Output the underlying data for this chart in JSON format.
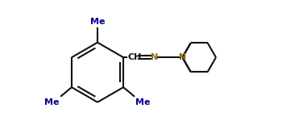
{
  "bg_color": "#ffffff",
  "line_color": "#111111",
  "text_color": "#111111",
  "me_color": "#00008b",
  "n_color": "#8b6914",
  "line_width": 1.5,
  "font_size": 7.5,
  "fig_width": 3.55,
  "fig_height": 1.65,
  "dpi": 100,
  "xlim": [
    0.0,
    9.5
  ],
  "ylim": [
    1.8,
    7.5
  ]
}
